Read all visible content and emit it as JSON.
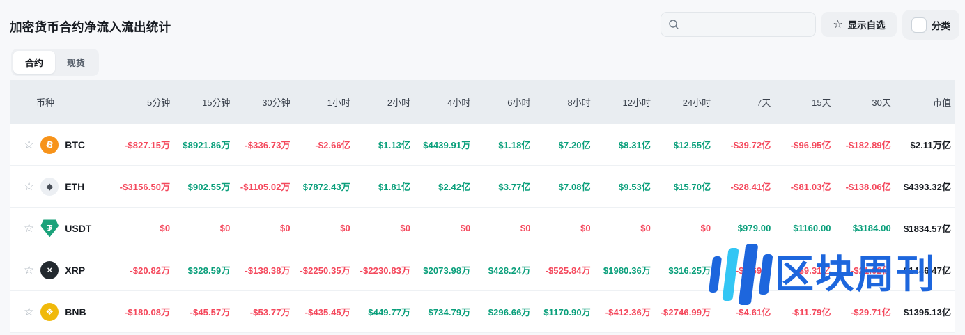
{
  "page": {
    "title": "加密货币合约净流入流出统计",
    "search_placeholder": "",
    "show_favorites_label": "显示自选",
    "category_label": "分类"
  },
  "tabs": [
    {
      "label": "合约",
      "active": true
    },
    {
      "label": "现货",
      "active": false
    }
  ],
  "colors": {
    "positive": "#0a9f7b",
    "negative": "#f4485c",
    "neutral": "#171b21",
    "watermark_blue": "#1d66dd",
    "watermark_cyan": "#33c6f4"
  },
  "table": {
    "columns": [
      "币种",
      "5分钟",
      "15分钟",
      "30分钟",
      "1小时",
      "2小时",
      "4小时",
      "6小时",
      "8小时",
      "12小时",
      "24小时",
      "7天",
      "15天",
      "30天",
      "市值"
    ],
    "rows": [
      {
        "symbol": "BTC",
        "icon": "btc-icon",
        "icon_bg": "#f7931a",
        "glyph": "Ƀ",
        "glyph_rotate": true,
        "values": [
          "-$827.15万",
          "$8921.86万",
          "-$336.73万",
          "-$2.66亿",
          "$1.13亿",
          "$4439.91万",
          "$1.18亿",
          "$7.20亿",
          "$8.31亿",
          "$12.55亿",
          "-$39.72亿",
          "-$96.95亿",
          "-$182.89亿"
        ],
        "market_cap": "$2.11万亿"
      },
      {
        "symbol": "ETH",
        "icon": "eth-icon",
        "icon_bg": "#eceff3",
        "glyph": "◆",
        "glyph_color": "#474d56",
        "values": [
          "-$3156.50万",
          "$902.55万",
          "-$1105.02万",
          "$7872.43万",
          "$1.81亿",
          "$2.42亿",
          "$3.77亿",
          "$7.08亿",
          "$9.53亿",
          "$15.70亿",
          "-$28.41亿",
          "-$81.03亿",
          "-$138.06亿"
        ],
        "market_cap": "$4393.32亿"
      },
      {
        "symbol": "USDT",
        "icon": "usdt-icon",
        "icon_bg": "#1ba27a",
        "glyph": "₮",
        "shape": "shield",
        "values": [
          "$0",
          "$0",
          "$0",
          "$0",
          "$0",
          "$0",
          "$0",
          "$0",
          "$0",
          "$0",
          "$979.00",
          "$1160.00",
          "$3184.00"
        ],
        "market_cap": "$1834.57亿"
      },
      {
        "symbol": "XRP",
        "icon": "xrp-icon",
        "icon_bg": "#23292f",
        "glyph": "×",
        "values": [
          "-$20.82万",
          "$328.59万",
          "-$138.38万",
          "-$2250.35万",
          "-$2230.83万",
          "$2073.98万",
          "$428.24万",
          "-$525.84万",
          "$1980.36万",
          "$316.25万",
          "-$1.69亿",
          "-$9.31亿",
          "-$21.02亿"
        ],
        "market_cap": "$1446.47亿"
      },
      {
        "symbol": "BNB",
        "icon": "bnb-icon",
        "icon_bg": "#f0b90b",
        "glyph": "❖",
        "values": [
          "-$180.08万",
          "-$45.57万",
          "-$53.77万",
          "-$435.45万",
          "$449.77万",
          "$734.79万",
          "$296.66万",
          "$1170.90万",
          "-$412.36万",
          "-$2746.99万",
          "-$4.61亿",
          "-$11.79亿",
          "-$29.71亿"
        ],
        "market_cap": "$1395.13亿"
      }
    ]
  },
  "watermark": {
    "text": "区块周刊"
  }
}
